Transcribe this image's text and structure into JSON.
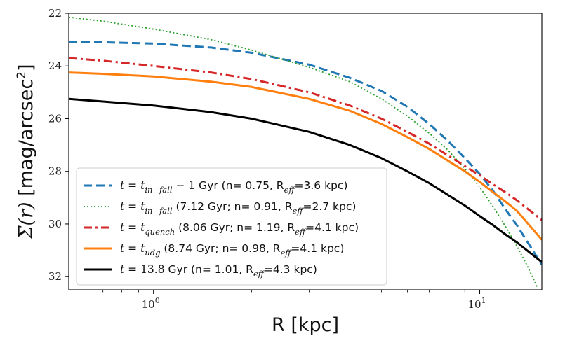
{
  "chart_data": {
    "type": "line",
    "xscale": "log",
    "yscale": "linear",
    "yinverted": true,
    "xlim": [
      0.55,
      15.5
    ],
    "ylim": [
      32.5,
      22
    ],
    "xticks": [
      {
        "value": 1,
        "base": "10",
        "exp": "0"
      },
      {
        "value": 10,
        "base": "10",
        "exp": "1"
      }
    ],
    "yticks": [
      22,
      24,
      26,
      28,
      30,
      32
    ],
    "xlabel": "R [kpc]",
    "ylabel": {
      "math": "Σ(r)",
      "text": " [mag/arcsec",
      "sup": "2",
      "close": "]"
    },
    "grid": false,
    "legend_position": "lower-left",
    "series": [
      {
        "name": "t = t_{in-fall} − 1 Gyr (n= 0.75, R_eff=3.6 kpc)",
        "legend": [
          {
            "t": "t",
            "c": "mi"
          },
          {
            "t": " = ",
            "c": "mr"
          },
          {
            "t": "t",
            "c": "mi"
          },
          {
            "t": "in−fall",
            "c": "mi",
            "sub": true
          },
          {
            "t": " − 1",
            "c": "mr"
          },
          {
            "t": " Gyr (n= 0.75, R",
            "c": ""
          },
          {
            "t": "eff",
            "c": "mi",
            "sub": true
          },
          {
            "t": "=3.6 kpc)",
            "c": ""
          }
        ],
        "color": "#1f77b4",
        "style": "dashed",
        "x": [
          0.55,
          0.7,
          1.0,
          1.5,
          2.0,
          3.0,
          4.0,
          5.0,
          6.0,
          7.0,
          8.0,
          9.0,
          10.0,
          11.0,
          12.0,
          13.0,
          15.5
        ],
        "y": [
          23.08,
          23.1,
          23.15,
          23.3,
          23.5,
          23.95,
          24.45,
          24.95,
          25.55,
          26.2,
          26.85,
          27.5,
          28.1,
          28.75,
          29.45,
          30.05,
          31.55
        ]
      },
      {
        "name": "t = t_{in-fall} (7.12 Gyr; n= 0.91, R_eff=2.7 kpc)",
        "legend": [
          {
            "t": "t",
            "c": "mi"
          },
          {
            "t": " = ",
            "c": "mr"
          },
          {
            "t": "t",
            "c": "mi"
          },
          {
            "t": "in−fall",
            "c": "mi",
            "sub": true
          },
          {
            "t": " (7.12 Gyr; n= 0.91, R",
            "c": ""
          },
          {
            "t": "eff",
            "c": "mi",
            "sub": true
          },
          {
            "t": "=2.7 kpc)",
            "c": ""
          }
        ],
        "color": "#2ca02c",
        "style": "dotted",
        "x": [
          0.55,
          0.7,
          1.0,
          1.5,
          2.0,
          3.0,
          4.0,
          5.0,
          6.0,
          7.0,
          8.0,
          9.0,
          10.0,
          11.0,
          12.0,
          13.0,
          14.0,
          15.0
        ],
        "y": [
          22.15,
          22.3,
          22.6,
          23.0,
          23.4,
          24.05,
          24.6,
          25.25,
          25.9,
          26.55,
          27.2,
          27.9,
          28.6,
          29.35,
          30.1,
          30.85,
          31.6,
          32.4
        ]
      },
      {
        "name": "t = t_{quench} (8.06 Gyr; n= 1.19, R_eff=4.1 kpc)",
        "legend": [
          {
            "t": "t",
            "c": "mi"
          },
          {
            "t": " = ",
            "c": "mr"
          },
          {
            "t": "t",
            "c": "mi"
          },
          {
            "t": "quench",
            "c": "mi",
            "sub": true
          },
          {
            "t": " (8.06 Gyr; n= 1.19, R",
            "c": ""
          },
          {
            "t": "eff",
            "c": "mi",
            "sub": true
          },
          {
            "t": "=4.1 kpc)",
            "c": ""
          }
        ],
        "color": "#d62728",
        "style": "dashdot",
        "x": [
          0.55,
          0.7,
          1.0,
          1.5,
          2.0,
          3.0,
          4.0,
          5.0,
          6.0,
          7.0,
          8.0,
          9.0,
          10.0,
          11.0,
          12.0,
          13.0,
          15.5
        ],
        "y": [
          23.7,
          23.8,
          24.0,
          24.25,
          24.5,
          25.0,
          25.5,
          26.0,
          26.5,
          26.95,
          27.4,
          27.8,
          28.15,
          28.5,
          28.8,
          29.1,
          29.85
        ]
      },
      {
        "name": "t = t_{udg} (8.74 Gyr; n= 0.98, R_eff=4.1 kpc)",
        "legend": [
          {
            "t": "t",
            "c": "mi"
          },
          {
            "t": " = ",
            "c": "mr"
          },
          {
            "t": "t",
            "c": "mi"
          },
          {
            "t": "udg",
            "c": "mi",
            "sub": true
          },
          {
            "t": " (8.74 Gyr; n= 0.98, R",
            "c": ""
          },
          {
            "t": "eff",
            "c": "mi",
            "sub": true
          },
          {
            "t": "=4.1 kpc)",
            "c": ""
          }
        ],
        "color": "#ff7f0e",
        "style": "solid",
        "x": [
          0.55,
          0.7,
          1.0,
          1.5,
          2.0,
          3.0,
          4.0,
          5.0,
          6.0,
          7.0,
          8.0,
          9.0,
          10.0,
          11.0,
          12.0,
          13.0,
          15.5
        ],
        "y": [
          24.25,
          24.3,
          24.4,
          24.6,
          24.8,
          25.25,
          25.7,
          26.2,
          26.7,
          27.15,
          27.6,
          28.0,
          28.4,
          28.8,
          29.15,
          29.5,
          30.6
        ]
      },
      {
        "name": "t = 13.8 Gyr (n= 1.01, R_eff=4.3 kpc)",
        "legend": [
          {
            "t": "t",
            "c": "mi"
          },
          {
            "t": " = 13.8",
            "c": "mr"
          },
          {
            "t": " Gyr (n= 1.01, R",
            "c": ""
          },
          {
            "t": "eff",
            "c": "mi",
            "sub": true
          },
          {
            "t": "=4.3 kpc)",
            "c": ""
          }
        ],
        "color": "#000000",
        "style": "solid",
        "x": [
          0.55,
          0.7,
          1.0,
          1.5,
          2.0,
          3.0,
          4.0,
          5.0,
          6.0,
          7.0,
          8.0,
          9.0,
          10.0,
          11.0,
          12.0,
          13.0,
          15.5
        ],
        "y": [
          25.25,
          25.35,
          25.5,
          25.75,
          26.0,
          26.5,
          27.0,
          27.5,
          28.0,
          28.45,
          28.9,
          29.3,
          29.7,
          30.05,
          30.4,
          30.7,
          31.45
        ]
      }
    ]
  }
}
